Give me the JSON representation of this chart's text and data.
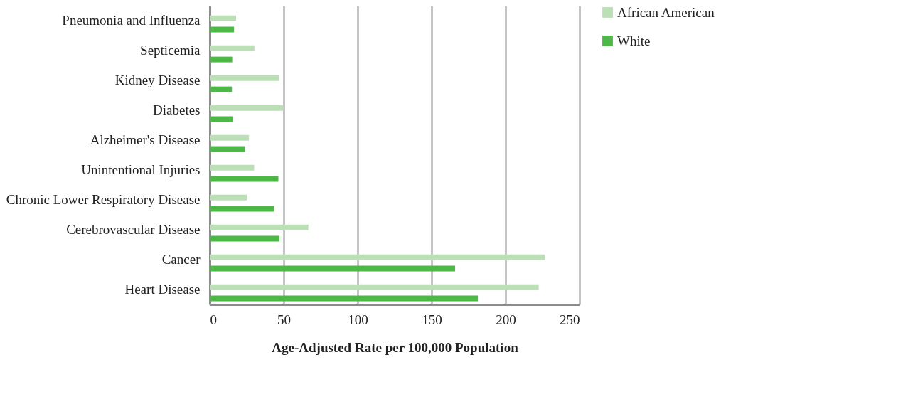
{
  "chart_data": {
    "type": "bar",
    "orientation": "horizontal",
    "xlabel": "Age-Adjusted Rate per 100,000 Population",
    "categories": [
      "Pneumonia and Influenza",
      "Septicemia",
      "Kidney Disease",
      "Diabetes",
      "Alzheimer's Disease",
      "Unintentional Injuries",
      "Chronic Lower Respiratory Disease",
      "Cerebrovascular Disease",
      "Cancer",
      "Heart Disease"
    ],
    "series": [
      {
        "name": "African American",
        "color": "#bddfb8",
        "values": [
          17.8,
          30.2,
          46.9,
          49.6,
          26.5,
          30,
          25.1,
          66.7,
          226.6,
          222.4
        ]
      },
      {
        "name": "White",
        "color": "#4db848",
        "values": [
          16.4,
          15.2,
          15,
          15.5,
          23.8,
          46.4,
          43.7,
          47.1,
          165.9,
          181.3
        ]
      }
    ],
    "xlim": [
      0,
      250
    ],
    "xticks": [
      0,
      50,
      100,
      150,
      200,
      250
    ],
    "grid": "x",
    "legend": "right"
  }
}
